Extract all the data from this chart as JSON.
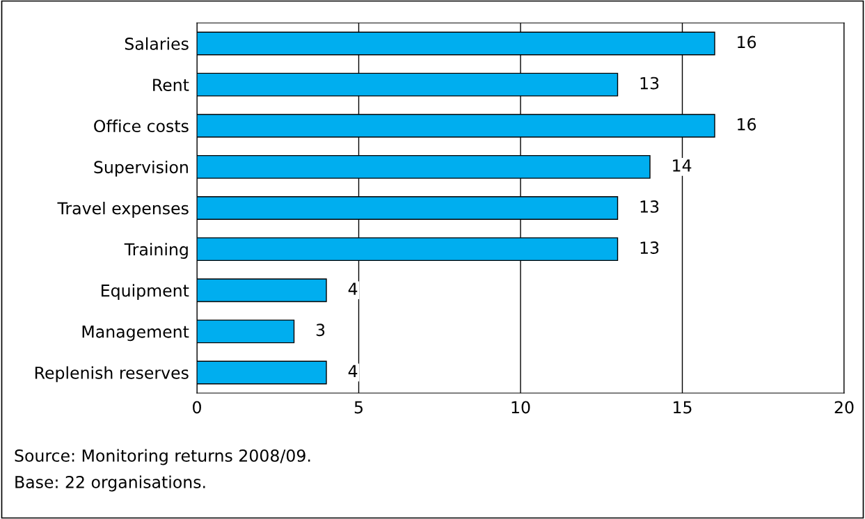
{
  "chart_data": {
    "type": "bar",
    "orientation": "horizontal",
    "categories": [
      "Salaries",
      "Rent",
      "Office costs",
      "Supervision",
      "Travel expenses",
      "Training",
      "Equipment",
      "Management",
      "Replenish reserves"
    ],
    "values": [
      16,
      13,
      16,
      14,
      13,
      13,
      4,
      3,
      4
    ],
    "color": "#00aeef",
    "data_labels": true,
    "xlim": [
      0,
      20
    ],
    "xticks": [
      0,
      5,
      10,
      15,
      20
    ],
    "grid": "x",
    "legend": false,
    "annotations": [
      "Source: Monitoring returns 2008/09.",
      "Base: 22 organisations."
    ]
  }
}
